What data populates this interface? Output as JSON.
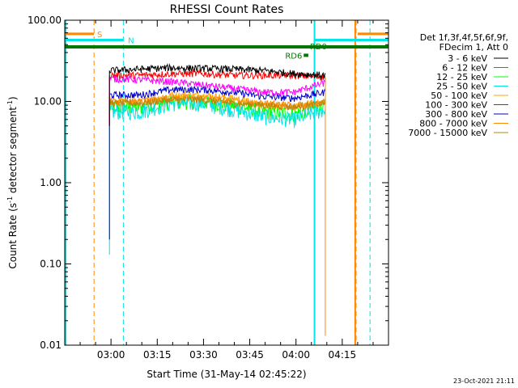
{
  "chart_data": {
    "type": "line",
    "title": "RHESSI Count Rates",
    "xlabel": "Start Time (31-May-14 02:45:22)",
    "ylabel": "Count Rate (s⁻¹ detector segment⁻¹)",
    "ylabel_main": "Count Rate (s",
    "ylabel_sup1": "-1",
    "ylabel_mid": " detector segment",
    "ylabel_sup2": "-1",
    "ylabel_end": ")",
    "yscale": "log",
    "ylim": [
      0.01,
      100
    ],
    "xlim_minutes": [
      0,
      105
    ],
    "ytick_labels": [
      "100.00",
      "10.00",
      "1.00",
      "0.10",
      "0.01"
    ],
    "ytick_values": [
      100,
      10,
      1,
      0.1,
      0.01
    ],
    "xtick_labels": [
      "03:00",
      "03:15",
      "03:30",
      "03:45",
      "04:00",
      "04:15"
    ],
    "xtick_minutes": [
      15,
      30,
      45,
      60,
      75,
      90
    ],
    "legend_header": [
      "Det 1f,3f,4f,5f,6f,9f,",
      "FDecim 1, Att 0"
    ],
    "legend_placement": "right",
    "timestamp": "23-Oct-2021 21:11",
    "annotations": {
      "S": "S",
      "N": "N",
      "RD0": "RD0",
      "RD6": "RD6"
    },
    "colors": {
      "saa": "#ff8800",
      "night": "#00e5e5",
      "decim": "#007700"
    },
    "series": [
      {
        "name": "3 - 6 keV",
        "color": "#000000",
        "values": [
          24,
          25,
          26,
          25.5,
          25,
          24,
          22,
          21
        ]
      },
      {
        "name": "6 - 12 keV",
        "color": "#ff00ff",
        "values": [
          19,
          18.5,
          17.5,
          16,
          14.5,
          13,
          13,
          17
        ]
      },
      {
        "name": "12 - 25 keV",
        "color": "#00ff00",
        "values": [
          8.5,
          8.5,
          10,
          10,
          9,
          7.5,
          7,
          9
        ]
      },
      {
        "name": "25 - 50 keV",
        "color": "#00e5e5",
        "values": [
          7.5,
          7.5,
          9.5,
          9.5,
          8,
          6.5,
          6,
          8
        ]
      },
      {
        "name": "50 - 100 keV",
        "color": "#ffa500",
        "values": [
          10,
          10,
          12,
          12,
          11,
          9,
          8.5,
          10
        ]
      },
      {
        "name": "100 - 300 keV",
        "color": "#ff0000",
        "values": [
          21,
          21,
          22,
          22,
          21,
          21,
          21,
          20
        ]
      },
      {
        "name": "300 - 800 keV",
        "color": "#0000cc",
        "values": [
          12,
          12,
          14,
          14,
          13,
          11.5,
          11,
          13
        ]
      },
      {
        "name": "800 - 7000 keV",
        "color": "#ff8800",
        "values": [
          10,
          10,
          11,
          11,
          10,
          9.5,
          9,
          10
        ]
      },
      {
        "name": "7000 - 15000 keV",
        "color": "#b8860b",
        "values": [
          9.5,
          9.5,
          10.5,
          10.5,
          9.5,
          9,
          8.5,
          9.5
        ]
      }
    ]
  }
}
